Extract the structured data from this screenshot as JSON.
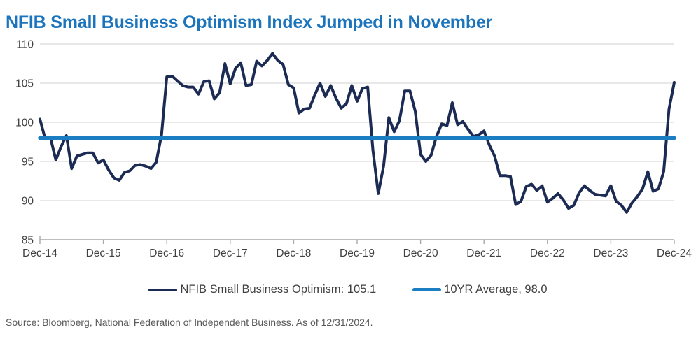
{
  "title": "NFIB Small Business Optimism Index Jumped in November",
  "source_note": "Source: Bloomberg, National Federation of Independent Business. As of 12/31/2024.",
  "legend": {
    "series_label": "NFIB Small Business Optimism: 105.1",
    "average_label": "10YR Average, 98.0"
  },
  "colors": {
    "title": "#1C75BC",
    "series_line": "#1C2B54",
    "average_line": "#1B7EC2",
    "gridline": "#D9D9D9",
    "axis": "#A9A9A9",
    "tick_label": "#404040",
    "source_text": "#595959"
  },
  "chart_data": {
    "type": "line",
    "title": "NFIB Small Business Optimism Index Jumped in November",
    "frequency": "monthly",
    "x_start": "Dec-2014",
    "x_end": "Dec-2024",
    "x_tick_labels": [
      "Dec-14",
      "Dec-15",
      "Dec-16",
      "Dec-17",
      "Dec-18",
      "Dec-19",
      "Dec-20",
      "Dec-21",
      "Dec-22",
      "Dec-23",
      "Dec-24"
    ],
    "ylim": [
      85,
      110
    ],
    "yticks": [
      85,
      90,
      95,
      100,
      105,
      110
    ],
    "grid": "horizontal",
    "legend_position": "bottom",
    "series": [
      {
        "name": "NFIB Small Business Optimism",
        "latest_value": 105.1,
        "color": "#1C2B54",
        "values": [
          100.4,
          97.9,
          98.0,
          95.2,
          96.9,
          98.3,
          94.1,
          95.7,
          95.9,
          96.1,
          96.1,
          94.8,
          95.2,
          93.9,
          92.9,
          92.6,
          93.6,
          93.8,
          94.5,
          94.6,
          94.4,
          94.1,
          94.9,
          98.4,
          105.8,
          105.9,
          105.3,
          104.7,
          104.5,
          104.5,
          103.6,
          105.2,
          105.3,
          103.0,
          103.8,
          107.5,
          104.9,
          106.9,
          107.6,
          104.7,
          104.8,
          107.8,
          107.2,
          107.9,
          108.8,
          107.9,
          107.4,
          104.8,
          104.4,
          101.2,
          101.7,
          101.8,
          103.5,
          105.0,
          103.3,
          104.7,
          103.1,
          101.8,
          102.4,
          104.7,
          102.7,
          104.3,
          104.5,
          96.4,
          90.9,
          94.4,
          100.6,
          98.8,
          100.2,
          104.0,
          104.0,
          101.4,
          95.9,
          95.0,
          95.8,
          98.2,
          99.8,
          99.6,
          102.5,
          99.7,
          100.1,
          99.1,
          98.2,
          98.4,
          98.9,
          97.1,
          95.7,
          93.2,
          93.2,
          93.1,
          89.5,
          89.9,
          91.8,
          92.1,
          91.3,
          91.9,
          89.8,
          90.3,
          90.9,
          90.1,
          89.0,
          89.4,
          91.0,
          91.9,
          91.3,
          90.8,
          90.7,
          90.6,
          91.9,
          89.9,
          89.4,
          88.5,
          89.7,
          90.5,
          91.5,
          93.7,
          91.2,
          91.5,
          93.7,
          101.7,
          105.1
        ]
      },
      {
        "name": "10YR Average",
        "value": 98.0,
        "color": "#1B7EC2"
      }
    ]
  }
}
